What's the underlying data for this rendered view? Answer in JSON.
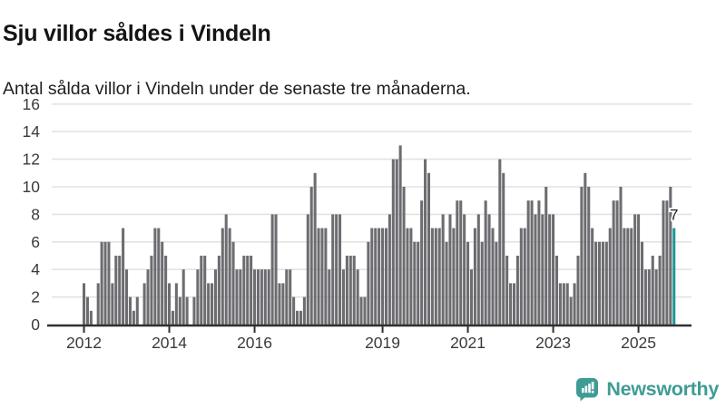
{
  "header": {
    "title": "Sju villor såldes i Vindeln",
    "subtitle": "Antal sålda villor i Vindeln under de senaste tre månaderna."
  },
  "chart_data": {
    "type": "bar",
    "title": "Sju villor såldes i Vindeln",
    "subtitle": "Antal sålda villor i Vindeln under de senaste tre månaderna.",
    "frequency": "monthly",
    "start_month": "2012-01",
    "end_month": "2025-11",
    "values": [
      3,
      2,
      1,
      0,
      3,
      6,
      6,
      6,
      3,
      5,
      5,
      7,
      4,
      2,
      1,
      2,
      0,
      3,
      4,
      5,
      7,
      7,
      6,
      5,
      3,
      1,
      3,
      2,
      4,
      2,
      0,
      2,
      4,
      5,
      5,
      3,
      3,
      4,
      5,
      7,
      8,
      7,
      6,
      4,
      4,
      5,
      5,
      5,
      4,
      4,
      4,
      4,
      4,
      8,
      8,
      3,
      3,
      4,
      4,
      2,
      1,
      1,
      2,
      8,
      10,
      11,
      7,
      7,
      7,
      4,
      8,
      8,
      8,
      4,
      5,
      5,
      5,
      4,
      2,
      2,
      6,
      7,
      7,
      7,
      7,
      7,
      8,
      12,
      12,
      13,
      10,
      7,
      7,
      6,
      6,
      9,
      12,
      11,
      7,
      7,
      7,
      8,
      6,
      8,
      7,
      9,
      9,
      8,
      6,
      4,
      7,
      8,
      6,
      9,
      8,
      7,
      6,
      12,
      11,
      5,
      3,
      3,
      5,
      7,
      7,
      9,
      9,
      8,
      9,
      8,
      10,
      8,
      8,
      5,
      3,
      3,
      3,
      2,
      3,
      5,
      10,
      11,
      10,
      7,
      6,
      6,
      6,
      6,
      7,
      9,
      9,
      10,
      7,
      7,
      7,
      8,
      8,
      6,
      4,
      4,
      5,
      4,
      5,
      9,
      9,
      10,
      7
    ],
    "highlight_label": "7",
    "highlight_value": 7,
    "highlight_color": "#1f9894",
    "bar_color": "#6c6c71",
    "label_color": "#1f1f1f",
    "grid": true,
    "legend": false,
    "ylim": [
      0,
      16
    ],
    "y_axis": {
      "ticks": [
        0,
        2,
        4,
        6,
        8,
        10,
        12,
        14,
        16
      ]
    },
    "x_axis": {
      "tick_labels": [
        "2012",
        "2014",
        "2016",
        "2019",
        "2021",
        "2023",
        "2025"
      ],
      "tick_years": [
        2012,
        2014,
        2016,
        2019,
        2021,
        2023,
        2025
      ]
    },
    "axis_color": "#303030",
    "axis_text_color": "#3b3b3b",
    "gridline_color": "#e3e3e3"
  },
  "footer": {
    "brand": "Newsworthy",
    "brand_color": "#3f9c94",
    "icon": "newsworthy-bubble-chart-icon"
  }
}
